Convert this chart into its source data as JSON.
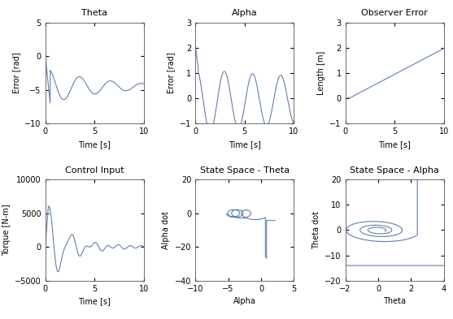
{
  "title_theta": "Theta",
  "title_alpha": "Alpha",
  "title_observer": "Observer Error",
  "title_control": "Control Input",
  "title_ss_theta": "State Space - Theta",
  "title_ss_alpha": "State Space - Alpha",
  "xlabel_time": "Time [s]",
  "ylabel_theta": "Error [rad]",
  "ylabel_alpha": "Error [rad]",
  "ylabel_observer": "Length [m]",
  "ylabel_control": "Torque [N-m]",
  "ylabel_ss_theta": "Alpha dot",
  "ylabel_ss_alpha": "Theta dot",
  "xlabel_ss_theta": "Alpha",
  "xlabel_ss_alpha": "Theta",
  "theta_ylim": [
    -10,
    5
  ],
  "alpha_ylim": [
    -1,
    3
  ],
  "observer_ylim": [
    -1,
    3
  ],
  "control_ylim": [
    -5000,
    10000
  ],
  "ss_theta_ylim": [
    -40,
    20
  ],
  "ss_alpha_ylim": [
    -20,
    20
  ],
  "theta_xlim": [
    0,
    10
  ],
  "alpha_xlim": [
    0,
    10
  ],
  "observer_xlim": [
    0,
    10
  ],
  "control_xlim": [
    0,
    10
  ],
  "ss_theta_xlim": [
    -10,
    5
  ],
  "ss_alpha_xlim": [
    -2,
    4
  ],
  "line_color": "#6080a8",
  "bg_color": "#ffffff",
  "title_fontsize": 8,
  "label_fontsize": 7,
  "tick_fontsize": 7
}
